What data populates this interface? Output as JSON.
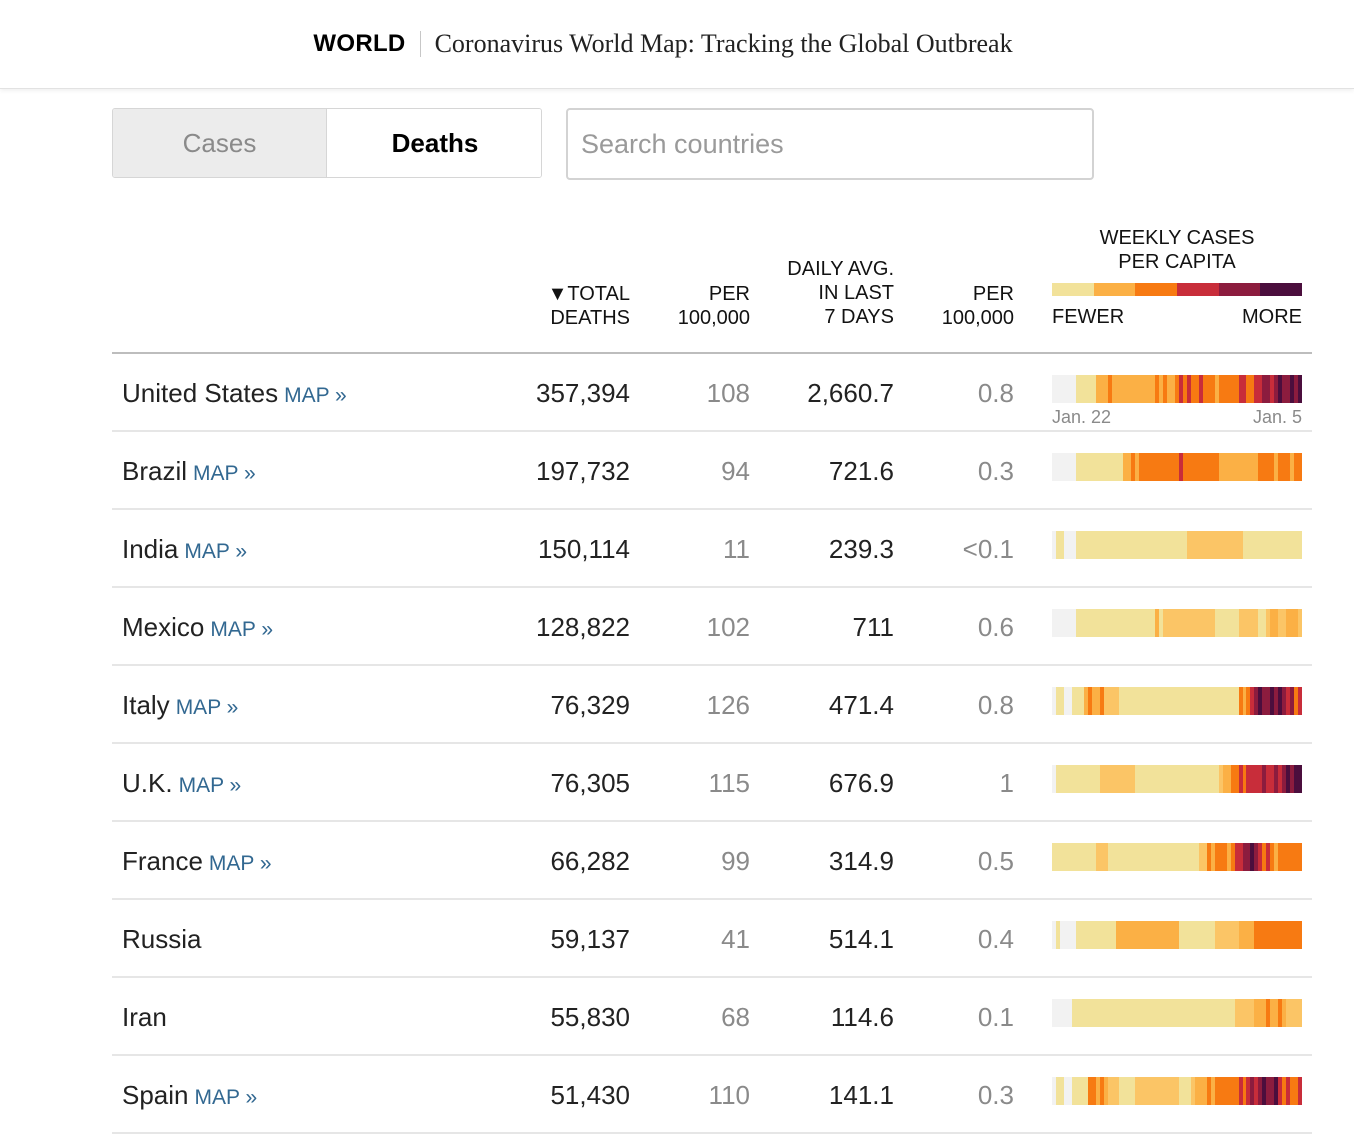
{
  "header": {
    "section": "WORLD",
    "title": "Coronavirus World Map: Tracking the Global Outbreak"
  },
  "toggle": {
    "cases_label": "Cases",
    "deaths_label": "Deaths",
    "selected": "Deaths"
  },
  "search": {
    "placeholder": "Search countries",
    "value": ""
  },
  "table": {
    "columns": {
      "total_deaths": "▼TOTAL\nDEATHS",
      "per_100k_total": "PER\n100,000",
      "daily_avg": "DAILY AVG.\nIN LAST\n7 DAYS",
      "per_100k_daily": "PER\n100,000",
      "weekly": "WEEKLY CASES\nPER CAPITA"
    },
    "legend": {
      "low": "FEWER",
      "high": "MORE",
      "colors": [
        "#f2e29a",
        "#fbb045",
        "#f77a12",
        "#c82d3a",
        "#8c1c3e",
        "#4b0e3d"
      ]
    },
    "date_start": "Jan. 22",
    "date_end": "Jan. 5",
    "map_label": "MAP »",
    "rows": [
      {
        "country": "United States",
        "has_map": true,
        "total": "357,394",
        "per100k": "108",
        "daily": "2,660.7",
        "daily_per100k": "0.8",
        "weekly": [
          "#f2f2f2",
          "#f2f2f2",
          "#f2f2f2",
          "#f2f2f2",
          "#f2f2f2",
          "#f2f2f2",
          "#f2e29a",
          "#f2e29a",
          "#f2e29a",
          "#f2e29a",
          "#f2e29a",
          "#fbb045",
          "#fbb045",
          "#fbb045",
          "#f77a12",
          "#fbb045",
          "#fbb045",
          "#fbb045",
          "#fbb045",
          "#fbb045",
          "#fbb045",
          "#fbb045",
          "#fbb045",
          "#fbb045",
          "#fbb045",
          "#fbb045",
          "#f77a12",
          "#fbb045",
          "#f77a12",
          "#fbb045",
          "#fbb045",
          "#f77a12",
          "#c82d3a",
          "#f77a12",
          "#c82d3a",
          "#f77a12",
          "#f77a12",
          "#c82d3a",
          "#f77a12",
          "#f77a12",
          "#f77a12",
          "#fbb045",
          "#f77a12",
          "#f77a12",
          "#f77a12",
          "#f77a12",
          "#f77a12",
          "#c82d3a",
          "#c82d3a",
          "#f77a12",
          "#f77a12",
          "#c82d3a",
          "#c82d3a",
          "#8c1c3e",
          "#8c1c3e",
          "#c82d3a",
          "#8c1c3e",
          "#4b0e3d",
          "#8c1c3e",
          "#8c1c3e",
          "#4b0e3d",
          "#8c1c3e",
          "#4b0e3d"
        ]
      },
      {
        "country": "Brazil",
        "has_map": true,
        "total": "197,732",
        "per100k": "94",
        "daily": "721.6",
        "daily_per100k": "0.3",
        "weekly": [
          "#f2f2f2",
          "#f2f2f2",
          "#f2f2f2",
          "#f2f2f2",
          "#f2f2f2",
          "#f2f2f2",
          "#f2e29a",
          "#f2e29a",
          "#f2e29a",
          "#f2e29a",
          "#f2e29a",
          "#f2e29a",
          "#f2e29a",
          "#f2e29a",
          "#f2e29a",
          "#f2e29a",
          "#f2e29a",
          "#f2e29a",
          "#fbb045",
          "#fbb045",
          "#f77a12",
          "#fbb045",
          "#f77a12",
          "#f77a12",
          "#f77a12",
          "#f77a12",
          "#f77a12",
          "#f77a12",
          "#f77a12",
          "#f77a12",
          "#f77a12",
          "#f77a12",
          "#c82d3a",
          "#f77a12",
          "#f77a12",
          "#f77a12",
          "#f77a12",
          "#f77a12",
          "#f77a12",
          "#f77a12",
          "#f77a12",
          "#f77a12",
          "#fbb045",
          "#fbb045",
          "#fbb045",
          "#fbb045",
          "#fbb045",
          "#fbb045",
          "#fbb045",
          "#fbb045",
          "#fbb045",
          "#fbb045",
          "#f77a12",
          "#f77a12",
          "#f77a12",
          "#f77a12",
          "#fbb045",
          "#f77a12",
          "#f77a12",
          "#f77a12",
          "#fbb045",
          "#f77a12",
          "#f77a12"
        ]
      },
      {
        "country": "India",
        "has_map": true,
        "total": "150,114",
        "per100k": "11",
        "daily": "239.3",
        "daily_per100k": "<0.1",
        "weekly": [
          "#f2f2f2",
          "#f2e29a",
          "#f2e29a",
          "#f2f2f2",
          "#f2f2f2",
          "#f2f2f2",
          "#f2e29a",
          "#f2e29a",
          "#f2e29a",
          "#f2e29a",
          "#f2e29a",
          "#f2e29a",
          "#f2e29a",
          "#f2e29a",
          "#f2e29a",
          "#f2e29a",
          "#f2e29a",
          "#f2e29a",
          "#f2e29a",
          "#f2e29a",
          "#f2e29a",
          "#f2e29a",
          "#f2e29a",
          "#f2e29a",
          "#f2e29a",
          "#f2e29a",
          "#f2e29a",
          "#f2e29a",
          "#f2e29a",
          "#f2e29a",
          "#f2e29a",
          "#f2e29a",
          "#f2e29a",
          "#f2e29a",
          "#fbc566",
          "#fbc566",
          "#fbc566",
          "#fbc566",
          "#fbc566",
          "#fbc566",
          "#fbc566",
          "#fbc566",
          "#fbc566",
          "#fbc566",
          "#fbc566",
          "#fbc566",
          "#fbc566",
          "#fbc566",
          "#f2e29a",
          "#f2e29a",
          "#f2e29a",
          "#f2e29a",
          "#f2e29a",
          "#f2e29a",
          "#f2e29a",
          "#f2e29a",
          "#f2e29a",
          "#f2e29a",
          "#f2e29a",
          "#f2e29a",
          "#f2e29a",
          "#f2e29a",
          "#f2e29a"
        ]
      },
      {
        "country": "Mexico",
        "has_map": true,
        "total": "128,822",
        "per100k": "102",
        "daily": "711",
        "daily_per100k": "0.6",
        "weekly": [
          "#f2f2f2",
          "#f2f2f2",
          "#f2f2f2",
          "#f2f2f2",
          "#f2f2f2",
          "#f2f2f2",
          "#f2e29a",
          "#f2e29a",
          "#f2e29a",
          "#f2e29a",
          "#f2e29a",
          "#f2e29a",
          "#f2e29a",
          "#f2e29a",
          "#f2e29a",
          "#f2e29a",
          "#f2e29a",
          "#f2e29a",
          "#f2e29a",
          "#f2e29a",
          "#f2e29a",
          "#f2e29a",
          "#f2e29a",
          "#f2e29a",
          "#f2e29a",
          "#f2e29a",
          "#fbb045",
          "#f2e29a",
          "#fbc566",
          "#fbc566",
          "#fbc566",
          "#fbc566",
          "#fbc566",
          "#fbc566",
          "#fbc566",
          "#fbc566",
          "#fbc566",
          "#fbc566",
          "#fbc566",
          "#fbc566",
          "#fbc566",
          "#f2e29a",
          "#f2e29a",
          "#f2e29a",
          "#f2e29a",
          "#f2e29a",
          "#f2e29a",
          "#fbc566",
          "#fbc566",
          "#fbc566",
          "#fbc566",
          "#fbc566",
          "#f2e29a",
          "#f2e29a",
          "#fbc566",
          "#fbb045",
          "#fbb045",
          "#fbc566",
          "#fbc566",
          "#fbb045",
          "#fbb045",
          "#fbb045",
          "#fbc566"
        ]
      },
      {
        "country": "Italy",
        "has_map": true,
        "total": "76,329",
        "per100k": "126",
        "daily": "471.4",
        "daily_per100k": "0.8",
        "weekly": [
          "#f2f2f2",
          "#f2e29a",
          "#f2e29a",
          "#f2f2f2",
          "#f2f2f2",
          "#f2e29a",
          "#f2e29a",
          "#f2e29a",
          "#fbb045",
          "#f77a12",
          "#fbb045",
          "#fbb045",
          "#f77a12",
          "#fbc566",
          "#fbc566",
          "#fbc566",
          "#fbc566",
          "#f2e29a",
          "#f2e29a",
          "#f2e29a",
          "#f2e29a",
          "#f2e29a",
          "#f2e29a",
          "#f2e29a",
          "#f2e29a",
          "#f2e29a",
          "#f2e29a",
          "#f2e29a",
          "#f2e29a",
          "#f2e29a",
          "#f2e29a",
          "#f2e29a",
          "#f2e29a",
          "#f2e29a",
          "#f2e29a",
          "#f2e29a",
          "#f2e29a",
          "#f2e29a",
          "#f2e29a",
          "#f2e29a",
          "#f2e29a",
          "#f2e29a",
          "#f2e29a",
          "#f2e29a",
          "#f2e29a",
          "#f2e29a",
          "#f2e29a",
          "#f77a12",
          "#fbb045",
          "#f77a12",
          "#c82d3a",
          "#8c1c3e",
          "#4b0e3d",
          "#8c1c3e",
          "#8c1c3e",
          "#4b0e3d",
          "#8c1c3e",
          "#4b0e3d",
          "#8c1c3e",
          "#c82d3a",
          "#8c1c3e",
          "#f77a12",
          "#c82d3a"
        ]
      },
      {
        "country": "U.K.",
        "has_map": true,
        "total": "76,305",
        "per100k": "115",
        "daily": "676.9",
        "daily_per100k": "1",
        "weekly": [
          "#f2f2f2",
          "#f2e29a",
          "#f2e29a",
          "#f2e29a",
          "#f2e29a",
          "#f2e29a",
          "#f2e29a",
          "#f2e29a",
          "#f2e29a",
          "#f2e29a",
          "#f2e29a",
          "#f2e29a",
          "#fbc566",
          "#fbc566",
          "#fbc566",
          "#fbc566",
          "#fbc566",
          "#fbc566",
          "#fbc566",
          "#fbc566",
          "#fbc566",
          "#f2e29a",
          "#f2e29a",
          "#f2e29a",
          "#f2e29a",
          "#f2e29a",
          "#f2e29a",
          "#f2e29a",
          "#f2e29a",
          "#f2e29a",
          "#f2e29a",
          "#f2e29a",
          "#f2e29a",
          "#f2e29a",
          "#f2e29a",
          "#f2e29a",
          "#f2e29a",
          "#f2e29a",
          "#f2e29a",
          "#f2e29a",
          "#f2e29a",
          "#f2e29a",
          "#fbc566",
          "#fbb045",
          "#fbb045",
          "#f77a12",
          "#f77a12",
          "#c82d3a",
          "#f77a12",
          "#c82d3a",
          "#c82d3a",
          "#c82d3a",
          "#c82d3a",
          "#8c1c3e",
          "#c82d3a",
          "#c82d3a",
          "#8c1c3e",
          "#c82d3a",
          "#8c1c3e",
          "#4b0e3d",
          "#8c1c3e",
          "#4b0e3d",
          "#4b0e3d"
        ]
      },
      {
        "country": "France",
        "has_map": true,
        "total": "66,282",
        "per100k": "99",
        "daily": "314.9",
        "daily_per100k": "0.5",
        "weekly": [
          "#f2e29a",
          "#f2e29a",
          "#f2e29a",
          "#f2e29a",
          "#f2e29a",
          "#f2e29a",
          "#f2e29a",
          "#f2e29a",
          "#f2e29a",
          "#f2e29a",
          "#f2e29a",
          "#fbc566",
          "#fbc566",
          "#fbc566",
          "#f2e29a",
          "#f2e29a",
          "#f2e29a",
          "#f2e29a",
          "#f2e29a",
          "#f2e29a",
          "#f2e29a",
          "#f2e29a",
          "#f2e29a",
          "#f2e29a",
          "#f2e29a",
          "#f2e29a",
          "#f2e29a",
          "#f2e29a",
          "#f2e29a",
          "#f2e29a",
          "#f2e29a",
          "#f2e29a",
          "#f2e29a",
          "#f2e29a",
          "#f2e29a",
          "#f2e29a",
          "#f2e29a",
          "#fbc566",
          "#fbc566",
          "#f77a12",
          "#fbb045",
          "#f77a12",
          "#f77a12",
          "#f77a12",
          "#fbb045",
          "#f77a12",
          "#c82d3a",
          "#c82d3a",
          "#8c1c3e",
          "#8c1c3e",
          "#4b0e3d",
          "#8c1c3e",
          "#c82d3a",
          "#f77a12",
          "#c82d3a",
          "#f77a12",
          "#fbb045",
          "#f77a12",
          "#f77a12",
          "#f77a12",
          "#f77a12",
          "#f77a12",
          "#f77a12"
        ]
      },
      {
        "country": "Russia",
        "has_map": false,
        "total": "59,137",
        "per100k": "41",
        "daily": "514.1",
        "daily_per100k": "0.4",
        "weekly": [
          "#f2f2f2",
          "#f2e29a",
          "#f2f2f2",
          "#f2f2f2",
          "#f2f2f2",
          "#f2f2f2",
          "#f2e29a",
          "#f2e29a",
          "#f2e29a",
          "#f2e29a",
          "#f2e29a",
          "#f2e29a",
          "#f2e29a",
          "#f2e29a",
          "#f2e29a",
          "#f2e29a",
          "#fbb045",
          "#fbb045",
          "#fbb045",
          "#fbb045",
          "#fbb045",
          "#fbb045",
          "#fbb045",
          "#fbb045",
          "#fbb045",
          "#fbb045",
          "#fbb045",
          "#fbb045",
          "#fbb045",
          "#fbb045",
          "#fbb045",
          "#fbb045",
          "#f2e29a",
          "#f2e29a",
          "#f2e29a",
          "#f2e29a",
          "#f2e29a",
          "#f2e29a",
          "#f2e29a",
          "#f2e29a",
          "#f2e29a",
          "#fbc566",
          "#fbc566",
          "#fbc566",
          "#fbc566",
          "#fbc566",
          "#fbc566",
          "#fbb045",
          "#fbb045",
          "#fbb045",
          "#fbb045",
          "#f77a12",
          "#f77a12",
          "#f77a12",
          "#f77a12",
          "#f77a12",
          "#f77a12",
          "#f77a12",
          "#f77a12",
          "#f77a12",
          "#f77a12",
          "#f77a12",
          "#f77a12"
        ]
      },
      {
        "country": "Iran",
        "has_map": false,
        "total": "55,830",
        "per100k": "68",
        "daily": "114.6",
        "daily_per100k": "0.1",
        "weekly": [
          "#f2f2f2",
          "#f2f2f2",
          "#f2f2f2",
          "#f2f2f2",
          "#f2f2f2",
          "#f2e29a",
          "#f2e29a",
          "#f2e29a",
          "#f2e29a",
          "#f2e29a",
          "#f2e29a",
          "#f2e29a",
          "#f2e29a",
          "#f2e29a",
          "#f2e29a",
          "#f2e29a",
          "#f2e29a",
          "#f2e29a",
          "#f2e29a",
          "#f2e29a",
          "#f2e29a",
          "#f2e29a",
          "#f2e29a",
          "#f2e29a",
          "#f2e29a",
          "#f2e29a",
          "#f2e29a",
          "#f2e29a",
          "#f2e29a",
          "#f2e29a",
          "#f2e29a",
          "#f2e29a",
          "#f2e29a",
          "#f2e29a",
          "#f2e29a",
          "#f2e29a",
          "#f2e29a",
          "#f2e29a",
          "#f2e29a",
          "#f2e29a",
          "#f2e29a",
          "#f2e29a",
          "#f2e29a",
          "#f2e29a",
          "#f2e29a",
          "#f2e29a",
          "#fbc566",
          "#fbc566",
          "#fbc566",
          "#fbc566",
          "#fbc566",
          "#fbb045",
          "#fbb045",
          "#fbb045",
          "#f77a12",
          "#fbb045",
          "#fbb045",
          "#f77a12",
          "#fbb045",
          "#fbc566",
          "#fbc566",
          "#fbc566",
          "#fbc566"
        ]
      },
      {
        "country": "Spain",
        "has_map": true,
        "total": "51,430",
        "per100k": "110",
        "daily": "141.1",
        "daily_per100k": "0.3",
        "weekly": [
          "#f2f2f2",
          "#f2e29a",
          "#f2e29a",
          "#f2f2f2",
          "#f2f2f2",
          "#f2e29a",
          "#f2e29a",
          "#f2e29a",
          "#f2e29a",
          "#f77a12",
          "#f77a12",
          "#fbb045",
          "#f77a12",
          "#fbb045",
          "#fbc566",
          "#fbc566",
          "#fbc566",
          "#f2e29a",
          "#f2e29a",
          "#f2e29a",
          "#f2e29a",
          "#fbc566",
          "#fbc566",
          "#fbc566",
          "#fbc566",
          "#fbc566",
          "#fbc566",
          "#fbc566",
          "#fbc566",
          "#fbc566",
          "#fbc566",
          "#fbc566",
          "#f2e29a",
          "#f2e29a",
          "#f2e29a",
          "#fbc566",
          "#fbb045",
          "#fbb045",
          "#fbb045",
          "#f77a12",
          "#fbb045",
          "#f77a12",
          "#f77a12",
          "#f77a12",
          "#f77a12",
          "#f77a12",
          "#f77a12",
          "#c82d3a",
          "#f77a12",
          "#c82d3a",
          "#8c1c3e",
          "#c82d3a",
          "#8c1c3e",
          "#4b0e3d",
          "#8c1c3e",
          "#8c1c3e",
          "#4b0e3d",
          "#c82d3a",
          "#f77a12",
          "#c82d3a",
          "#f77a12",
          "#f77a12",
          "#c82d3a"
        ]
      }
    ]
  }
}
